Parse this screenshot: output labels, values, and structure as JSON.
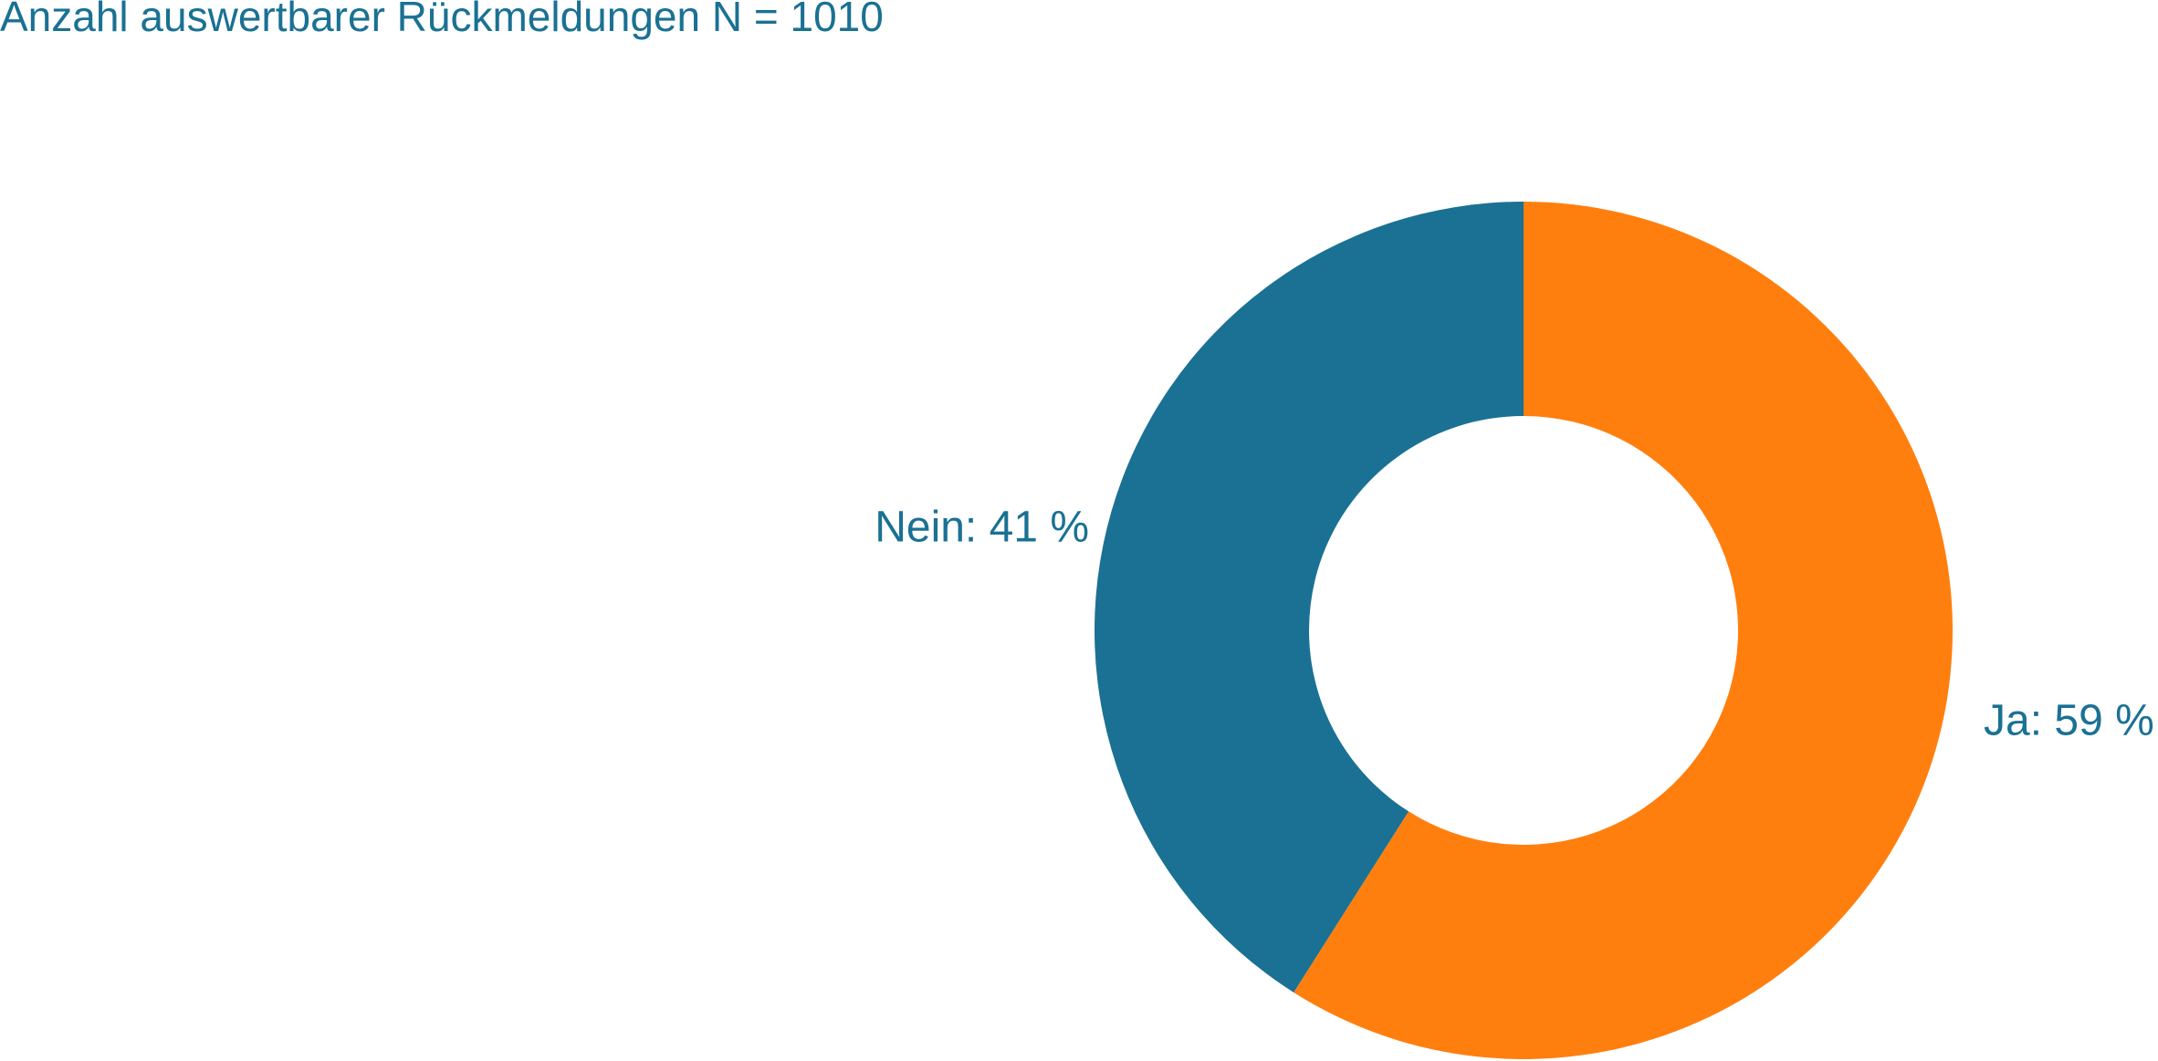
{
  "colors": {
    "ja": "#ff7f0e",
    "nein": "#1a7193",
    "text": "#1a7193",
    "background": "#ffffff"
  },
  "chart_data": {
    "type": "pie",
    "variant": "donut",
    "title": "Anzahl auswertbarer Rückmeldungen N = 1010",
    "categories": [
      "Ja",
      "Nein"
    ],
    "values": [
      59,
      41
    ],
    "unit": "%",
    "labels": [
      "Ja: 59 %",
      "Nein: 41 %"
    ],
    "start": "12 o'clock",
    "direction": "clockwise",
    "legend": "none"
  }
}
